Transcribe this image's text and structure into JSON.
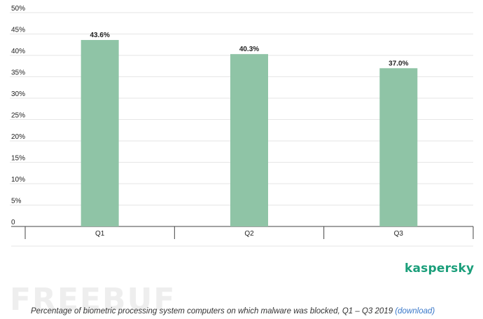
{
  "chart_data": {
    "type": "bar",
    "categories": [
      "Q1",
      "Q2",
      "Q3"
    ],
    "values": [
      43.6,
      40.3,
      37.0
    ],
    "data_labels": [
      "43.6%",
      "40.3%",
      "37.0%"
    ],
    "yticks": [
      "0",
      "5%",
      "10%",
      "15%",
      "20%",
      "25%",
      "30%",
      "35%",
      "40%",
      "45%",
      "50%"
    ],
    "ylim": [
      0,
      50
    ],
    "grid": true,
    "bar_color": "#8fc4a6"
  },
  "brand": "kaspersky",
  "brand_color": "#1a9e7a",
  "watermark": "FREEBUF",
  "caption": {
    "text": "Percentage of biometric processing system computers on which malware was blocked, Q1 – Q3 2019",
    "link": "(download)"
  }
}
